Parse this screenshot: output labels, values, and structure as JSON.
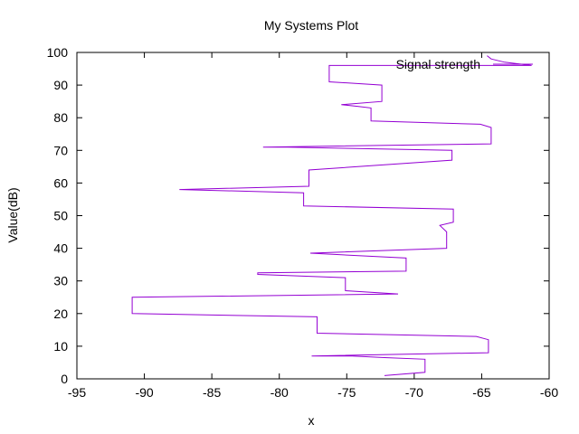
{
  "chart_data": {
    "type": "line",
    "title": "My Systems Plot",
    "xlabel": "x",
    "ylabel": "Value(dB)",
    "xlim": [
      -95,
      -60
    ],
    "ylim": [
      0,
      100
    ],
    "xticks": [
      -95,
      -90,
      -85,
      -80,
      -75,
      -70,
      -65,
      -60
    ],
    "yticks": [
      0,
      10,
      20,
      30,
      40,
      50,
      60,
      70,
      80,
      90,
      100
    ],
    "grid": false,
    "legend_position": "top-right",
    "colors": {
      "line": "#9400d3",
      "axis": "#000000"
    },
    "series": [
      {
        "name": "Signal strength",
        "points": [
          [
            -72.2,
            1
          ],
          [
            -69.2,
            2
          ],
          [
            -69.2,
            6
          ],
          [
            -72.2,
            6.5
          ],
          [
            -74.6,
            7
          ],
          [
            -77.6,
            7
          ],
          [
            -64.5,
            8
          ],
          [
            -64.5,
            12
          ],
          [
            -65.4,
            13
          ],
          [
            -77.2,
            14
          ],
          [
            -77.2,
            19
          ],
          [
            -90.9,
            20
          ],
          [
            -90.9,
            25
          ],
          [
            -71.2,
            26
          ],
          [
            -75.1,
            27
          ],
          [
            -75.1,
            31
          ],
          [
            -81.6,
            32
          ],
          [
            -81.6,
            32.5
          ],
          [
            -70.6,
            33
          ],
          [
            -70.6,
            37
          ],
          [
            -75.4,
            38
          ],
          [
            -77.7,
            38.5
          ],
          [
            -67.6,
            40
          ],
          [
            -67.6,
            45
          ],
          [
            -68.1,
            47
          ],
          [
            -67.1,
            48
          ],
          [
            -67.1,
            52
          ],
          [
            -78.2,
            53
          ],
          [
            -78.2,
            57
          ],
          [
            -87.4,
            58
          ],
          [
            -77.8,
            59
          ],
          [
            -77.8,
            64
          ],
          [
            -67.2,
            67
          ],
          [
            -67.2,
            70
          ],
          [
            -79.4,
            71
          ],
          [
            -81.2,
            71
          ],
          [
            -64.3,
            72
          ],
          [
            -64.3,
            77
          ],
          [
            -65.1,
            78
          ],
          [
            -73.2,
            79
          ],
          [
            -73.2,
            83
          ],
          [
            -74.2,
            83.5
          ],
          [
            -75.4,
            84
          ],
          [
            -72.4,
            85
          ],
          [
            -72.4,
            90
          ],
          [
            -76.3,
            91
          ],
          [
            -76.3,
            96
          ],
          [
            -61.3,
            96
          ],
          [
            -63.3,
            97
          ],
          [
            -64.3,
            98
          ],
          [
            -64.6,
            99
          ]
        ]
      }
    ]
  }
}
